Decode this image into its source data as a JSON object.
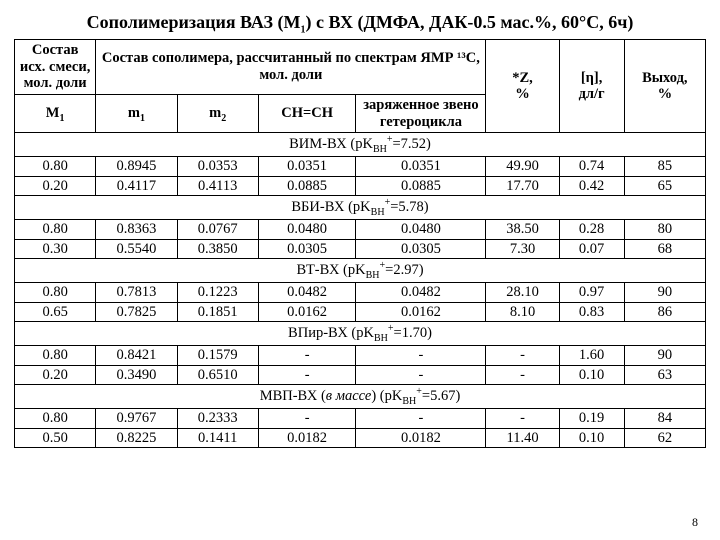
{
  "title_parts": {
    "pre": "Сополимеризация ВАЗ (M",
    "sub1": "1",
    "mid": ") с ВХ (ДМФА, ДАК-0.5 мас.%, 60°С, 6ч)"
  },
  "headers": {
    "feed": "Состав исх. смеси, мол. доли",
    "copolymer_group": "Состав сополимера, рассчитанный по спектрам ЯМР ¹³С, мол. доли",
    "M1": "M",
    "M1_sub": "1",
    "m1": "m",
    "m1_sub": "1",
    "m2": "m",
    "m2_sub": "2",
    "chch": "CH=CH",
    "hetero": "заряженное звено гетероцикла",
    "Z_pre": "*Z,",
    "Z_unit": "%",
    "eta": "[η],",
    "eta_unit": "дл/г",
    "yield": "Выход,",
    "yield_unit": "%"
  },
  "sections": [
    {
      "label_pre": "ВИМ-ВХ (pK",
      "label_sub": "BH",
      "label_sup": "+",
      "label_eq": "=7.52)",
      "rows": [
        {
          "M1": "0.80",
          "m1": "0.8945",
          "m2": "0.0353",
          "ch": "0.0351",
          "het": "0.0351",
          "z": "49.90",
          "eta": "0.74",
          "y": "85"
        },
        {
          "M1": "0.20",
          "m1": "0.4117",
          "m2": "0.4113",
          "ch": "0.0885",
          "het": "0.0885",
          "z": "17.70",
          "eta": "0.42",
          "y": "65"
        }
      ]
    },
    {
      "label_pre": "ВБИ-ВХ (pK",
      "label_sub": "BH",
      "label_sup": "+",
      "label_eq": "=5.78)",
      "rows": [
        {
          "M1": "0.80",
          "m1": "0.8363",
          "m2": "0.0767",
          "ch": "0.0480",
          "het": "0.0480",
          "z": "38.50",
          "eta": "0.28",
          "y": "80"
        },
        {
          "M1": "0.30",
          "m1": "0.5540",
          "m2": "0.3850",
          "ch": "0.0305",
          "het": "0.0305",
          "z": "7.30",
          "eta": "0.07",
          "y": "68"
        }
      ]
    },
    {
      "label_pre": "ВТ-ВХ (pK",
      "label_sub": "BH",
      "label_sup": "+",
      "label_eq": "=2.97)",
      "rows": [
        {
          "M1": "0.80",
          "m1": "0.7813",
          "m2": "0.1223",
          "ch": "0.0482",
          "het": "0.0482",
          "z": "28.10",
          "eta": "0.97",
          "y": "90"
        },
        {
          "M1": "0.65",
          "m1": "0.7825",
          "m2": "0.1851",
          "ch": "0.0162",
          "het": "0.0162",
          "z": "8.10",
          "eta": "0.83",
          "y": "86"
        }
      ]
    },
    {
      "label_pre": "ВПир-ВХ (pK",
      "label_sub": "BH",
      "label_sup": "+",
      "label_eq": "=1.70)",
      "rows": [
        {
          "M1": "0.80",
          "m1": "0.8421",
          "m2": "0.1579",
          "ch": "-",
          "het": "-",
          "z": "-",
          "eta": "1.60",
          "y": "90"
        },
        {
          "M1": "0.20",
          "m1": "0.3490",
          "m2": "0.6510",
          "ch": "-",
          "het": "-",
          "z": "-",
          "eta": "0.10",
          "y": "63"
        }
      ]
    },
    {
      "label_pre": "МВП-ВХ (",
      "label_em": "в массе",
      "label_post_em": ") (pK",
      "label_sub": "BH",
      "label_sup": "+",
      "label_eq": "=5.67)",
      "rows": [
        {
          "M1": "0.80",
          "m1": "0.9767",
          "m2": "0.2333",
          "ch": "-",
          "het": "-",
          "z": "-",
          "eta": "0.19",
          "y": "84"
        },
        {
          "M1": "0.50",
          "m1": "0.8225",
          "m2": "0.1411",
          "ch": "0.0182",
          "het": "0.0182",
          "z": "11.40",
          "eta": "0.10",
          "y": "62"
        }
      ]
    }
  ],
  "page_number": "8"
}
